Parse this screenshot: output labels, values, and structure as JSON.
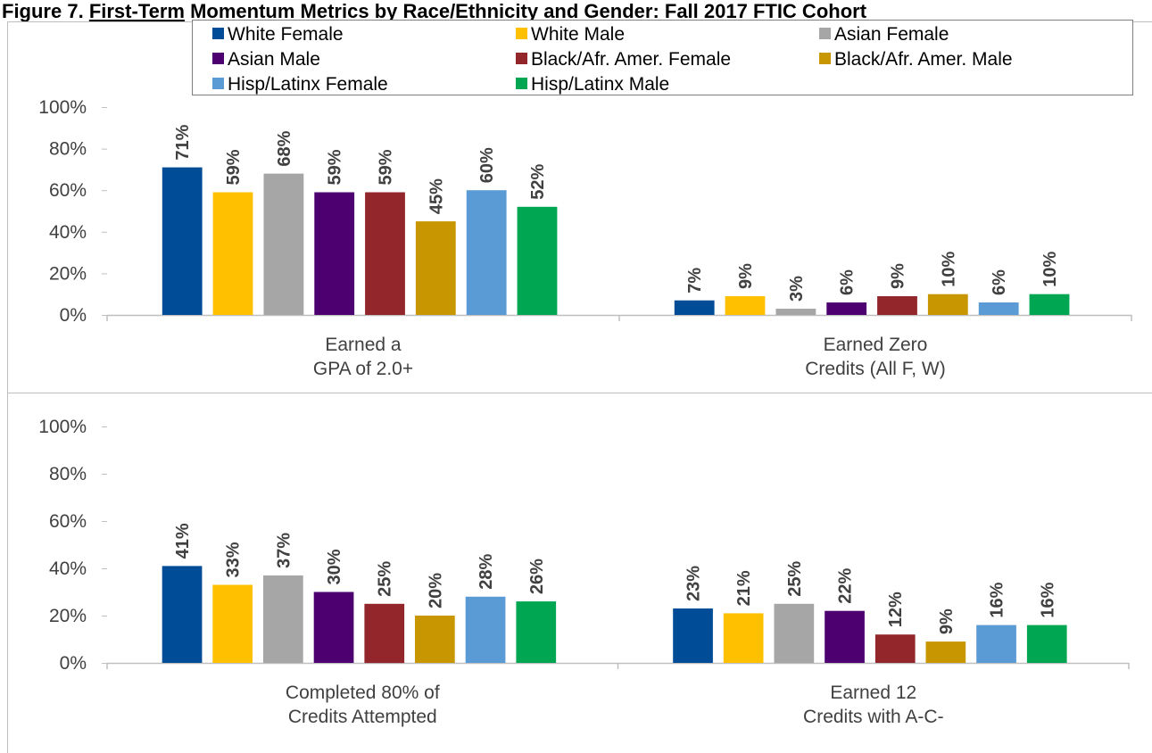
{
  "figure": {
    "title_prefix": "Figure 7.",
    "title_underlined": "First-Term",
    "title_rest": "Momentum Metrics by Race/Ethnicity and Gender: Fall 2017 FTIC Cohort"
  },
  "legend_placement": "top",
  "chart_data": [
    {
      "type": "bar",
      "categories": [
        "Earned a\nGPA of 2.0+",
        "Earned Zero\nCredits (All F, W)"
      ],
      "series": [
        {
          "name": "White Female",
          "color": "#004C97",
          "values": [
            71,
            7
          ]
        },
        {
          "name": "White Male",
          "color": "#FFC000",
          "values": [
            59,
            9
          ]
        },
        {
          "name": "Asian Female",
          "color": "#A6A6A6",
          "values": [
            68,
            3
          ]
        },
        {
          "name": "Asian Male",
          "color": "#4D0070",
          "values": [
            59,
            6
          ]
        },
        {
          "name": "Black/Afr. Amer. Female",
          "color": "#92262B",
          "values": [
            59,
            9
          ]
        },
        {
          "name": "Black/Afr. Amer. Male",
          "color": "#C89600",
          "values": [
            45,
            10
          ]
        },
        {
          "name": "Hisp/Latinx Female",
          "color": "#5B9BD5",
          "values": [
            60,
            6
          ]
        },
        {
          "name": "Hisp/Latinx Male",
          "color": "#00A651",
          "values": [
            52,
            10
          ]
        }
      ],
      "ylim": [
        0,
        100
      ],
      "yticks": [
        "0%",
        "20%",
        "40%",
        "60%",
        "80%",
        "100%"
      ],
      "grid": false
    },
    {
      "type": "bar",
      "categories": [
        "Completed 80% of\nCredits Attempted",
        "Earned 12\nCredits with A-C-"
      ],
      "series": [
        {
          "name": "White Female",
          "color": "#004C97",
          "values": [
            41,
            23
          ]
        },
        {
          "name": "White Male",
          "color": "#FFC000",
          "values": [
            33,
            21
          ]
        },
        {
          "name": "Asian Female",
          "color": "#A6A6A6",
          "values": [
            37,
            25
          ]
        },
        {
          "name": "Asian Male",
          "color": "#4D0070",
          "values": [
            30,
            22
          ]
        },
        {
          "name": "Black/Afr. Amer. Female",
          "color": "#92262B",
          "values": [
            25,
            12
          ]
        },
        {
          "name": "Black/Afr. Amer. Male",
          "color": "#C89600",
          "values": [
            20,
            9
          ]
        },
        {
          "name": "Hisp/Latinx Female",
          "color": "#5B9BD5",
          "values": [
            28,
            16
          ]
        },
        {
          "name": "Hisp/Latinx Male",
          "color": "#00A651",
          "values": [
            26,
            16
          ]
        }
      ],
      "ylim": [
        0,
        100
      ],
      "yticks": [
        "0%",
        "20%",
        "40%",
        "60%",
        "80%",
        "100%"
      ],
      "grid": false
    }
  ]
}
